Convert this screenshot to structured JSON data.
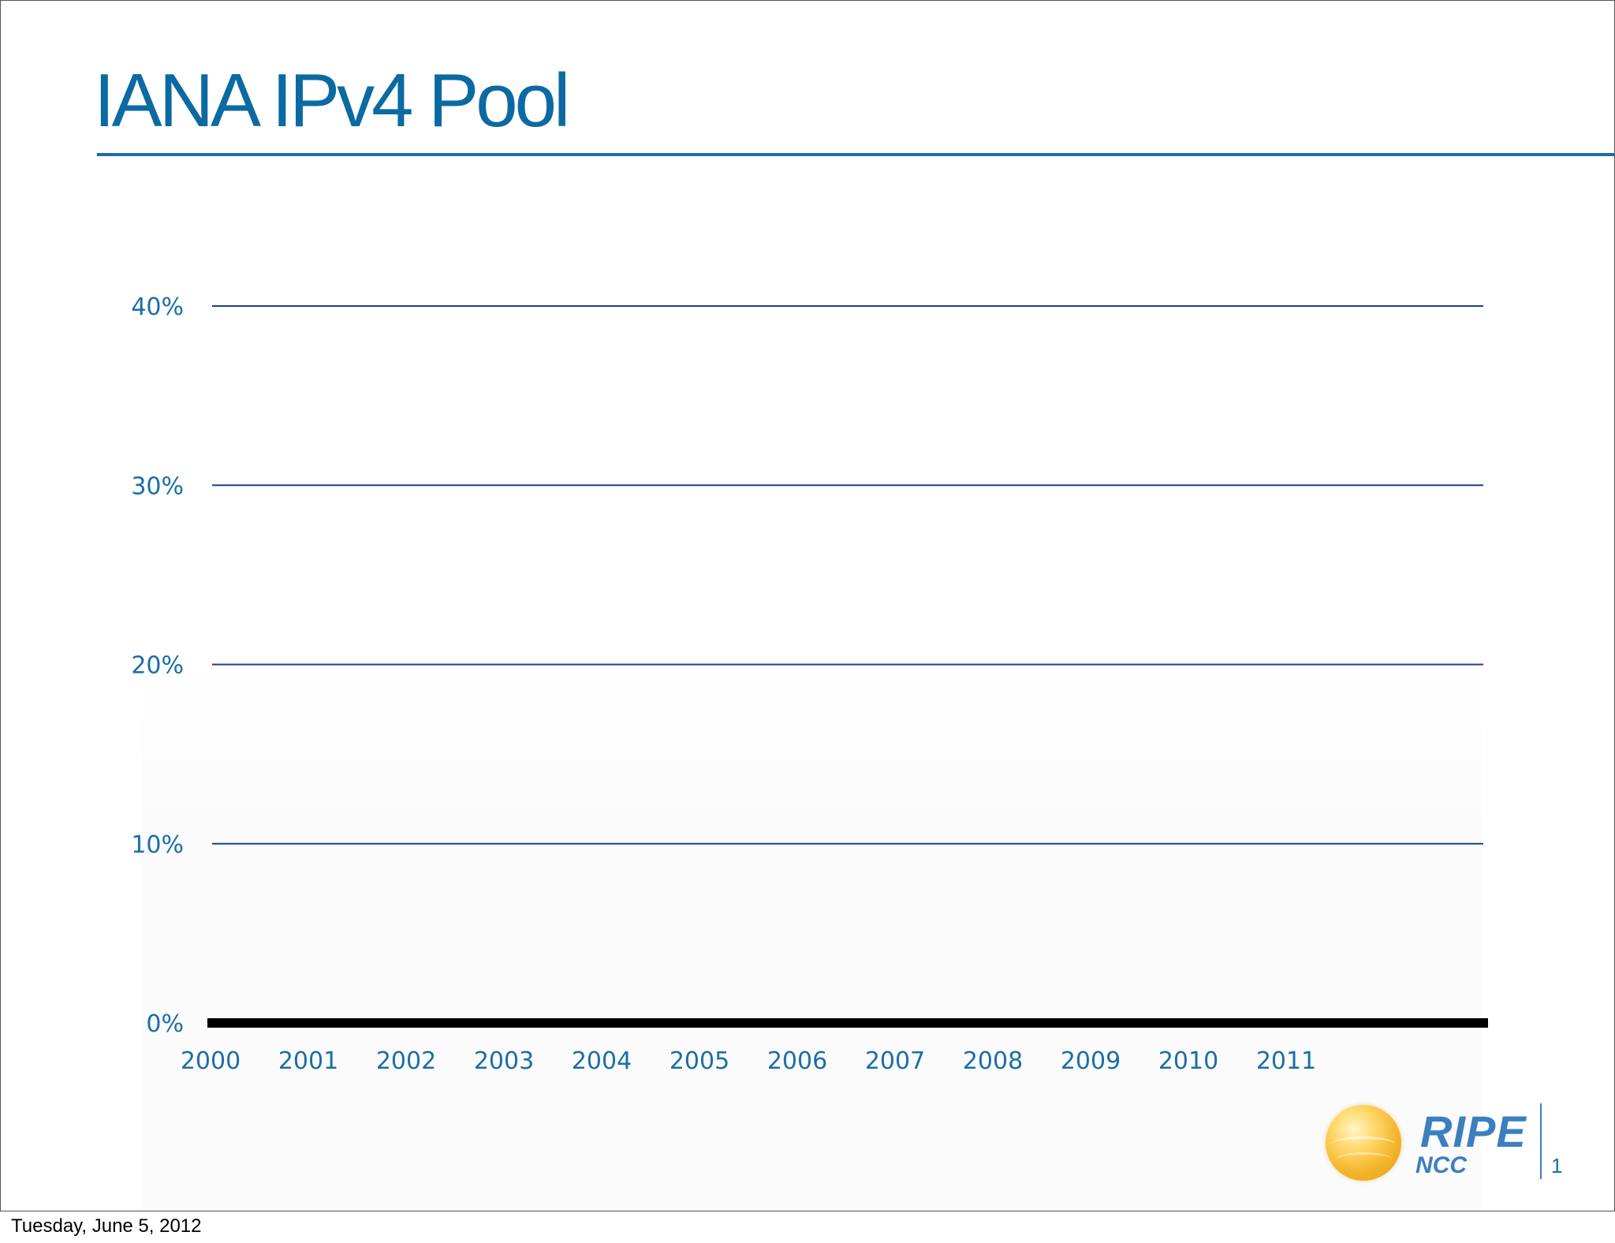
{
  "slide": {
    "title": "IANA IPv4 Pool",
    "slide_number": "1"
  },
  "logo": {
    "name": "RIPE",
    "subname": "NCC",
    "icon": "globe-icon"
  },
  "footer": {
    "date": "Tuesday, June 5, 2012"
  },
  "colors": {
    "title": "#0b6aa2",
    "axis_labels": "#1a6ea8",
    "gridline": "#1b3f8f",
    "baseline": "#000000",
    "logo": "#3b7fbf"
  },
  "chart_data": {
    "type": "line",
    "title": "",
    "xlabel": "",
    "ylabel": "",
    "x": [
      "2000",
      "2001",
      "2002",
      "2003",
      "2004",
      "2005",
      "2006",
      "2007",
      "2008",
      "2009",
      "2010",
      "2011"
    ],
    "yticks": [
      "0%",
      "10%",
      "20%",
      "30%",
      "40%"
    ],
    "ytick_values": [
      0,
      10,
      20,
      30,
      40
    ],
    "ylim": [
      0,
      40
    ],
    "series": [],
    "grid": true,
    "legend": "none"
  }
}
